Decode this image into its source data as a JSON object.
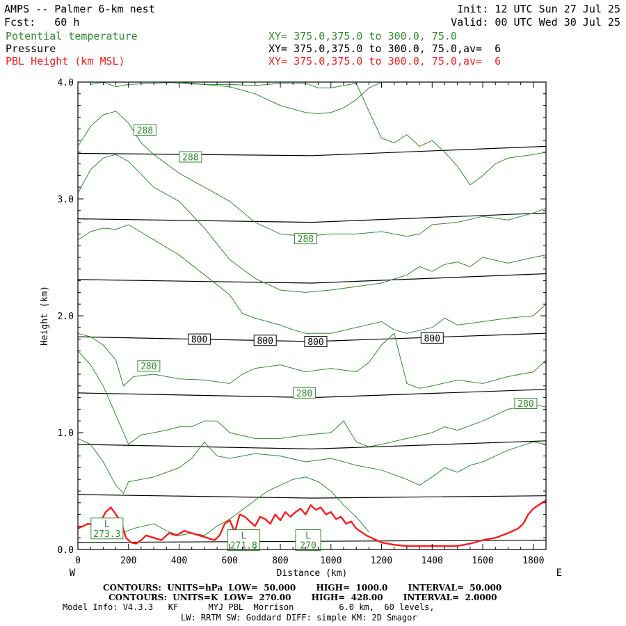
{
  "header": {
    "title": "AMPS -- Palmer 6-km nest",
    "fcst": "Fcst:   60 h",
    "init": "Init: 12 UTC Sun 27 Jul 25",
    "valid": "Valid: 00 UTC Wed 30 Jul 25",
    "fields": [
      {
        "name": "Potential temperature",
        "xy": "XY= 375.0,375.0 to 300.0, 75.0",
        "color": "#2e8b2e"
      },
      {
        "name": "Pressure",
        "xy": "XY= 375.0,375.0 to 300.0, 75.0,av=  6",
        "color": "#000000"
      },
      {
        "name": "PBL Height (km MSL)",
        "xy": "XY= 375.0,375.0 to 300.0, 75.0,av=  6",
        "color": "#ff1a1a"
      }
    ]
  },
  "footer": {
    "pressure_contours": "CONTOURS:  UNITS=hPa  LOW=  50.000       HIGH=  1000.0       INTERVAL=  50.000",
    "theta_contours": "CONTOURS:  UNITS=K  LOW=  270.00       HIGH=  428.00       INTERVAL=  2.0000",
    "model_info": "Model Info: V4.3.3   KF      MYJ PBL  Morrison         6.0 km,  60 levels,",
    "physics": "LW: RRTM SW: Goddard DIFF: simple KM: 2D Smagor"
  },
  "chart_data": {
    "type": "line",
    "xlabel": "Distance (km)",
    "ylabel": "Height (km)",
    "xlim": [
      0,
      1850
    ],
    "ylim": [
      0,
      4.0
    ],
    "x_ticks": [
      0,
      200,
      400,
      600,
      800,
      1000,
      1200,
      1400,
      1600,
      1800
    ],
    "y_ticks": [
      0.0,
      1.0,
      2.0,
      3.0,
      4.0
    ],
    "y_tick_labels": [
      "0.0",
      "1.0",
      "2.0",
      "3.0",
      "4.0"
    ],
    "left_end_label": "W",
    "right_end_label": "E",
    "pressure_isobars": {
      "color": "#000000",
      "lines": [
        {
          "x": [
            0,
            1850
          ],
          "y": [
            0.06,
            0.08
          ]
        },
        {
          "x": [
            0,
            925,
            1850
          ],
          "y": [
            0.47,
            0.44,
            0.46
          ]
        },
        {
          "x": [
            0,
            925,
            1850
          ],
          "y": [
            0.9,
            0.86,
            0.93
          ]
        },
        {
          "x": [
            0,
            925,
            1850
          ],
          "y": [
            1.34,
            1.3,
            1.37
          ]
        },
        {
          "x": [
            0,
            925,
            1850
          ],
          "y": [
            1.82,
            1.78,
            1.85
          ]
        },
        {
          "x": [
            0,
            925,
            1850
          ],
          "y": [
            2.31,
            2.28,
            2.36
          ]
        },
        {
          "x": [
            0,
            925,
            1850
          ],
          "y": [
            2.83,
            2.8,
            2.88
          ]
        },
        {
          "x": [
            0,
            925,
            1850
          ],
          "y": [
            3.39,
            3.37,
            3.45
          ]
        }
      ],
      "labels": [
        {
          "text": "800",
          "x": 480,
          "y": 1.8
        },
        {
          "text": "800",
          "x": 740,
          "y": 1.79
        },
        {
          "text": "800",
          "x": 940,
          "y": 1.78
        },
        {
          "text": "800",
          "x": 1400,
          "y": 1.81
        }
      ]
    },
    "theta_isentropes": {
      "color": "#2e8b2e",
      "lines": [
        {
          "x": [
            150,
            220,
            300,
            350,
            400,
            450,
            500,
            550,
            600,
            650,
            700,
            750,
            800,
            850,
            900,
            950,
            1000,
            1050,
            1100,
            1150
          ],
          "y": [
            0.12,
            0.18,
            0.22,
            0.16,
            0.12,
            0.14,
            0.12,
            0.2,
            0.26,
            0.34,
            0.42,
            0.5,
            0.55,
            0.6,
            0.62,
            0.58,
            0.5,
            0.38,
            0.28,
            0.15
          ]
        },
        {
          "x": [
            0,
            50,
            100,
            150,
            180,
            200,
            250,
            300,
            350,
            400,
            450,
            500,
            550,
            600,
            700,
            800,
            900,
            1000,
            1100,
            1200,
            1300,
            1350,
            1400,
            1450,
            1500,
            1550,
            1600,
            1700,
            1800,
            1850
          ],
          "y": [
            0.95,
            0.9,
            0.75,
            0.55,
            0.48,
            0.58,
            0.6,
            0.62,
            0.66,
            0.7,
            0.78,
            0.92,
            0.8,
            0.78,
            0.82,
            0.8,
            0.75,
            0.78,
            0.72,
            0.68,
            0.6,
            0.55,
            0.62,
            0.7,
            0.66,
            0.72,
            0.75,
            0.85,
            0.92,
            0.9
          ]
        },
        {
          "x": [
            0,
            50,
            100,
            150,
            200,
            250,
            300,
            350,
            400,
            450,
            500,
            550,
            600,
            700,
            800,
            900,
            1000,
            1050,
            1100,
            1150,
            1200,
            1300,
            1400,
            1450,
            1500,
            1600,
            1700,
            1800,
            1850
          ],
          "y": [
            1.7,
            1.58,
            1.4,
            1.15,
            0.9,
            0.98,
            1.0,
            1.02,
            1.05,
            1.05,
            1.1,
            1.1,
            1.0,
            0.95,
            0.95,
            0.98,
            1.0,
            1.1,
            0.92,
            0.88,
            0.9,
            0.95,
            1.0,
            1.05,
            1.02,
            1.1,
            1.2,
            1.24,
            1.22
          ]
        },
        {
          "x": [
            0,
            50,
            100,
            150,
            180,
            220,
            300,
            400,
            500,
            600,
            650,
            700,
            800,
            900,
            1000,
            1100,
            1150,
            1200,
            1250,
            1300,
            1350,
            1400,
            1500,
            1600,
            1700,
            1800,
            1850
          ],
          "y": [
            1.85,
            1.82,
            1.75,
            1.62,
            1.4,
            1.48,
            1.5,
            1.46,
            1.45,
            1.42,
            1.5,
            1.55,
            1.58,
            1.52,
            1.55,
            1.52,
            1.6,
            1.75,
            1.85,
            1.42,
            1.38,
            1.4,
            1.45,
            1.42,
            1.48,
            1.52,
            1.62
          ]
        },
        {
          "x": [
            0,
            50,
            100,
            150,
            200,
            300,
            400,
            500,
            600,
            650,
            700,
            750,
            800,
            850,
            900,
            1000,
            1100,
            1200,
            1250,
            1300,
            1400,
            1450,
            1500,
            1600,
            1700,
            1800,
            1850
          ],
          "y": [
            2.65,
            2.72,
            2.75,
            2.74,
            2.78,
            2.65,
            2.52,
            2.35,
            2.18,
            2.02,
            1.98,
            1.95,
            1.92,
            1.88,
            1.85,
            1.85,
            1.9,
            1.95,
            1.88,
            1.85,
            1.9,
            1.98,
            1.92,
            1.95,
            1.98,
            2.0,
            2.1
          ]
        },
        {
          "x": [
            0,
            50,
            100,
            150,
            200,
            300,
            400,
            500,
            600,
            700,
            800,
            900,
            1000,
            1100,
            1200,
            1300,
            1350,
            1400,
            1450,
            1500,
            1550,
            1600,
            1700,
            1800,
            1850
          ],
          "y": [
            3.05,
            3.25,
            3.35,
            3.38,
            3.32,
            3.1,
            2.98,
            2.75,
            2.48,
            2.32,
            2.22,
            2.2,
            2.22,
            2.25,
            2.28,
            2.35,
            2.42,
            2.38,
            2.44,
            2.46,
            2.42,
            2.5,
            2.45,
            2.5,
            2.52
          ]
        },
        {
          "x": [
            0,
            50,
            100,
            150,
            200,
            250,
            300,
            400,
            500,
            600,
            700,
            800,
            900,
            1000,
            1100,
            1200,
            1300,
            1350,
            1400,
            1500,
            1600,
            1700,
            1800,
            1850
          ],
          "y": [
            3.45,
            3.62,
            3.72,
            3.75,
            3.65,
            3.48,
            3.38,
            3.22,
            3.1,
            2.98,
            2.8,
            2.7,
            2.68,
            2.7,
            2.7,
            2.72,
            2.68,
            2.7,
            2.78,
            2.8,
            2.85,
            2.82,
            2.88,
            2.92
          ]
        },
        {
          "x": [
            50,
            100,
            150,
            200,
            300,
            400,
            450,
            500,
            600,
            700,
            800,
            900,
            950,
            1000,
            1100,
            1150,
            1200,
            1250,
            1300,
            1350,
            1400,
            1450,
            1500,
            1550,
            1600,
            1650,
            1700,
            1800,
            1850
          ],
          "y": [
            3.98,
            4.0,
            3.96,
            3.98,
            3.99,
            4.0,
            3.99,
            3.98,
            3.98,
            3.97,
            3.99,
            3.99,
            3.95,
            3.95,
            3.99,
            3.75,
            3.52,
            3.48,
            3.55,
            3.45,
            3.5,
            3.4,
            3.28,
            3.12,
            3.2,
            3.3,
            3.35,
            3.38,
            3.4
          ]
        },
        {
          "x": [
            350,
            400,
            500,
            600,
            700,
            800,
            900,
            950,
            1000,
            1050,
            1100,
            1150,
            1200
          ],
          "y": [
            4.0,
            3.99,
            3.98,
            3.96,
            3.9,
            3.8,
            3.74,
            3.73,
            3.74,
            3.78,
            3.85,
            3.95,
            4.0
          ]
        }
      ],
      "labels": [
        {
          "text": "288",
          "x": 265,
          "y": 3.59
        },
        {
          "text": "288",
          "x": 445,
          "y": 3.36
        },
        {
          "text": "288",
          "x": 900,
          "y": 2.66
        },
        {
          "text": "280",
          "x": 280,
          "y": 1.57
        },
        {
          "text": "280",
          "x": 895,
          "y": 1.34
        },
        {
          "text": "280",
          "x": 1770,
          "y": 1.25
        }
      ],
      "low_markers": [
        {
          "letter": "L",
          "value": "273.3",
          "x": 115,
          "y": 0.18
        },
        {
          "letter": "L",
          "value": "271.8",
          "x": 655,
          "y": 0.08
        },
        {
          "letter": "L",
          "value": "270",
          "x": 910,
          "y": 0.08
        }
      ]
    },
    "pbl_height": {
      "color": "#ff1a1a",
      "x": [
        0,
        40,
        80,
        110,
        130,
        150,
        170,
        190,
        210,
        230,
        250,
        270,
        300,
        330,
        360,
        390,
        420,
        450,
        480,
        510,
        540,
        560,
        580,
        600,
        620,
        640,
        660,
        680,
        700,
        720,
        740,
        760,
        780,
        800,
        820,
        840,
        860,
        880,
        900,
        920,
        940,
        960,
        980,
        1000,
        1020,
        1040,
        1060,
        1080,
        1100,
        1120,
        1140,
        1160,
        1180,
        1200,
        1250,
        1300,
        1400,
        1500,
        1550,
        1600,
        1650,
        1700,
        1740,
        1760,
        1780,
        1800,
        1820,
        1850
      ],
      "y": [
        0.18,
        0.22,
        0.2,
        0.32,
        0.36,
        0.3,
        0.24,
        0.1,
        0.06,
        0.05,
        0.08,
        0.12,
        0.1,
        0.08,
        0.14,
        0.12,
        0.16,
        0.14,
        0.12,
        0.1,
        0.08,
        0.12,
        0.22,
        0.25,
        0.15,
        0.3,
        0.28,
        0.24,
        0.2,
        0.28,
        0.26,
        0.22,
        0.3,
        0.25,
        0.32,
        0.28,
        0.32,
        0.35,
        0.3,
        0.38,
        0.34,
        0.36,
        0.3,
        0.32,
        0.26,
        0.28,
        0.22,
        0.24,
        0.18,
        0.15,
        0.12,
        0.1,
        0.08,
        0.06,
        0.04,
        0.03,
        0.03,
        0.03,
        0.05,
        0.08,
        0.1,
        0.14,
        0.18,
        0.22,
        0.3,
        0.35,
        0.38,
        0.42
      ]
    }
  }
}
